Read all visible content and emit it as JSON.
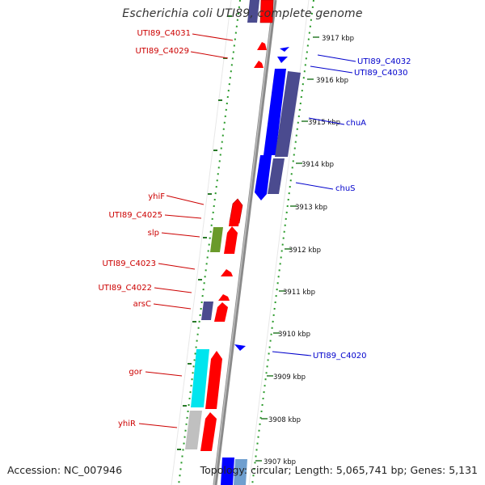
{
  "title": "Escherichia coli UTI89, complete genome",
  "footer": {
    "accession": "Accession: NC_007946",
    "topology": "Topology: circular; Length: 5,065,741 bp; Genes: 5,131"
  },
  "colors": {
    "forward_gene": "#ff0000",
    "reverse_gene": "#0000ff",
    "forward_label": "#cc0000",
    "reverse_label": "#0000cc",
    "cog_dark": "#4b4b8f",
    "cog_green": "#6a9a2a",
    "cog_cyan": "#00e5ee",
    "cog_gray": "#c0c0c0",
    "cog_steel": "#6f9fcf",
    "backbone": "#8a8a8a",
    "dotted_ring": "#2a9a2a"
  },
  "ticks": [
    "3917 kbp",
    "3916 kbp",
    "3915 kbp",
    "3914 kbp",
    "3913 kbp",
    "3912 kbp",
    "3911 kbp",
    "3910 kbp",
    "3909 kbp",
    "3908 kbp",
    "3907 kbp"
  ],
  "forward_labels": [
    "UTI89_C4031",
    "UTI89_C4029",
    "yhiF",
    "UTI89_C4025",
    "slp",
    "UTI89_C4023",
    "UTI89_C4022",
    "arsC",
    "gor",
    "yhiR"
  ],
  "reverse_labels": [
    "UTI89_C4032",
    "UTI89_C4030",
    "chuA",
    "chuS",
    "UTI89_C4020"
  ]
}
